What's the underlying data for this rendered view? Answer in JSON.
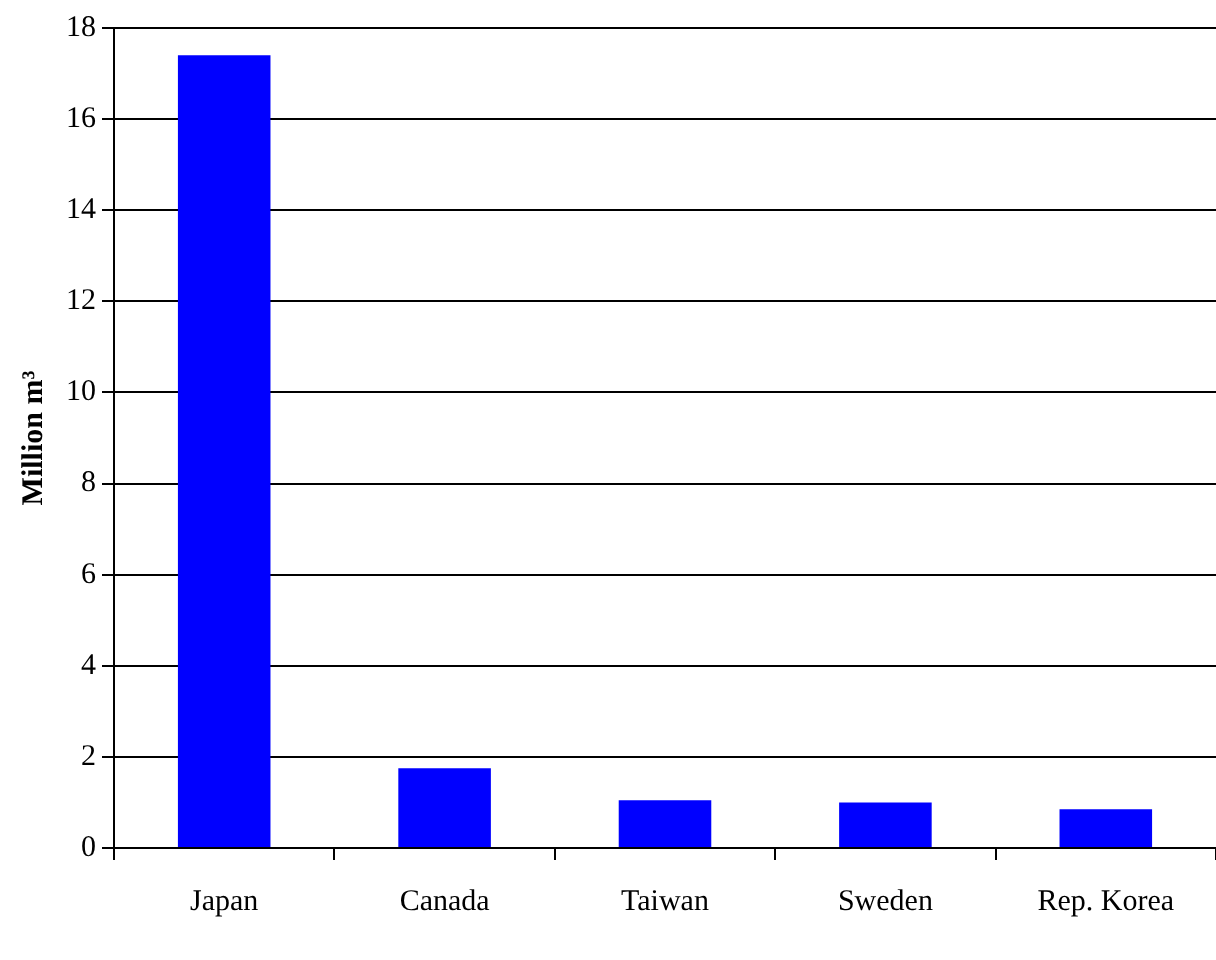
{
  "chart_data": {
    "type": "bar",
    "ylabel": "Million m³",
    "categories": [
      "Japan",
      "Canada",
      "Taiwan",
      "Sweden",
      "Rep. Korea"
    ],
    "values": [
      17.4,
      1.75,
      1.05,
      1.0,
      0.85
    ],
    "color": "#0000ff",
    "ylim": [
      0,
      18
    ],
    "yticks": [
      0,
      2,
      4,
      6,
      8,
      10,
      12,
      14,
      16,
      18
    ],
    "grid": "y",
    "legend": false
  }
}
